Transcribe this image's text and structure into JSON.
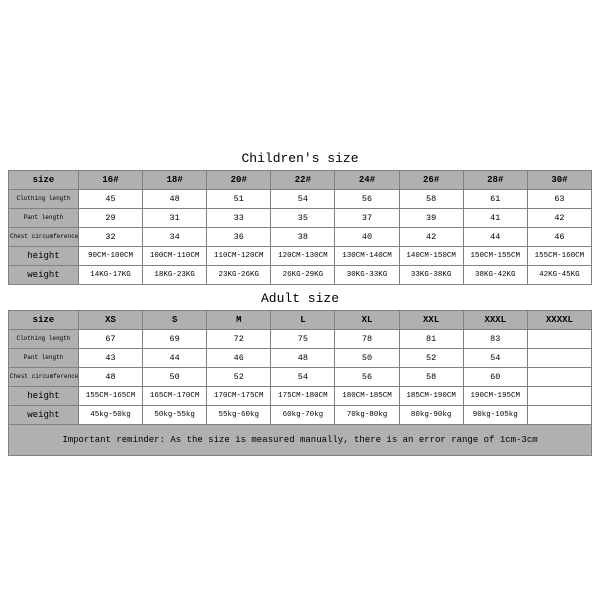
{
  "colors": {
    "header_bg": "#b0b0b0",
    "border": "#808080",
    "page_bg": "#ffffff",
    "text": "#000000"
  },
  "typography": {
    "font_family": "Courier New, monospace",
    "title_fontsize_pt": 13,
    "header_fontsize_pt": 9,
    "small_label_fontsize_pt": 6,
    "cell_fontsize_pt": 8.5
  },
  "children": {
    "title": "Children's size",
    "headers": [
      "size",
      "16#",
      "18#",
      "20#",
      "22#",
      "24#",
      "26#",
      "28#",
      "30#"
    ],
    "rows": [
      {
        "label": "Clothing length",
        "label_class": "rowlabel-small",
        "cells": [
          "45",
          "48",
          "51",
          "54",
          "56",
          "58",
          "61",
          "63"
        ],
        "cell_class": "cell"
      },
      {
        "label": "Pant length",
        "label_class": "rowlabel-small",
        "cells": [
          "29",
          "31",
          "33",
          "35",
          "37",
          "39",
          "41",
          "42"
        ],
        "cell_class": "cell"
      },
      {
        "label": "Chest circumference 1/2",
        "label_class": "rowlabel-small",
        "cells": [
          "32",
          "34",
          "36",
          "38",
          "40",
          "42",
          "44",
          "46"
        ],
        "cell_class": "cell"
      },
      {
        "label": "height",
        "label_class": "rowlabel-med",
        "cells": [
          "90CM-100CM",
          "100CM-110CM",
          "110CM-120CM",
          "120CM-130CM",
          "130CM-140CM",
          "140CM-150CM",
          "150CM-155CM",
          "155CM-160CM"
        ],
        "cell_class": "cell-small"
      },
      {
        "label": "weight",
        "label_class": "rowlabel-med",
        "cells": [
          "14KG-17KG",
          "18KG-23KG",
          "23KG-26KG",
          "26KG-29KG",
          "30KG-33KG",
          "33KG-38KG",
          "38KG-42KG",
          "42KG-45KG"
        ],
        "cell_class": "cell-small"
      }
    ]
  },
  "adult": {
    "title": "Adult size",
    "headers": [
      "size",
      "XS",
      "S",
      "M",
      "L",
      "XL",
      "XXL",
      "XXXL",
      "XXXXL"
    ],
    "rows": [
      {
        "label": "Clothing length",
        "label_class": "rowlabel-small",
        "cells": [
          "67",
          "69",
          "72",
          "75",
          "78",
          "81",
          "83",
          ""
        ],
        "cell_class": "cell"
      },
      {
        "label": "Pant length",
        "label_class": "rowlabel-small",
        "cells": [
          "43",
          "44",
          "46",
          "48",
          "50",
          "52",
          "54",
          ""
        ],
        "cell_class": "cell"
      },
      {
        "label": "Chest circumference 1/2",
        "label_class": "rowlabel-small",
        "cells": [
          "48",
          "50",
          "52",
          "54",
          "56",
          "58",
          "60",
          ""
        ],
        "cell_class": "cell"
      },
      {
        "label": "height",
        "label_class": "rowlabel-med",
        "cells": [
          "155CM-165CM",
          "165CM-170CM",
          "170CM-175CM",
          "175CM-180CM",
          "180CM-185CM",
          "185CM-190CM",
          "190CM-195CM",
          ""
        ],
        "cell_class": "cell-small"
      },
      {
        "label": "weight",
        "label_class": "rowlabel-med",
        "cells": [
          "45kg-50kg",
          "50kg-55kg",
          "55kg-60kg",
          "60kg-70kg",
          "70kg-80kg",
          "80kg-90kg",
          "90kg-105kg",
          ""
        ],
        "cell_class": "cell-small"
      }
    ]
  },
  "reminder": "Important reminder: As the size is measured manually, there is an error range of 1cm-3cm"
}
